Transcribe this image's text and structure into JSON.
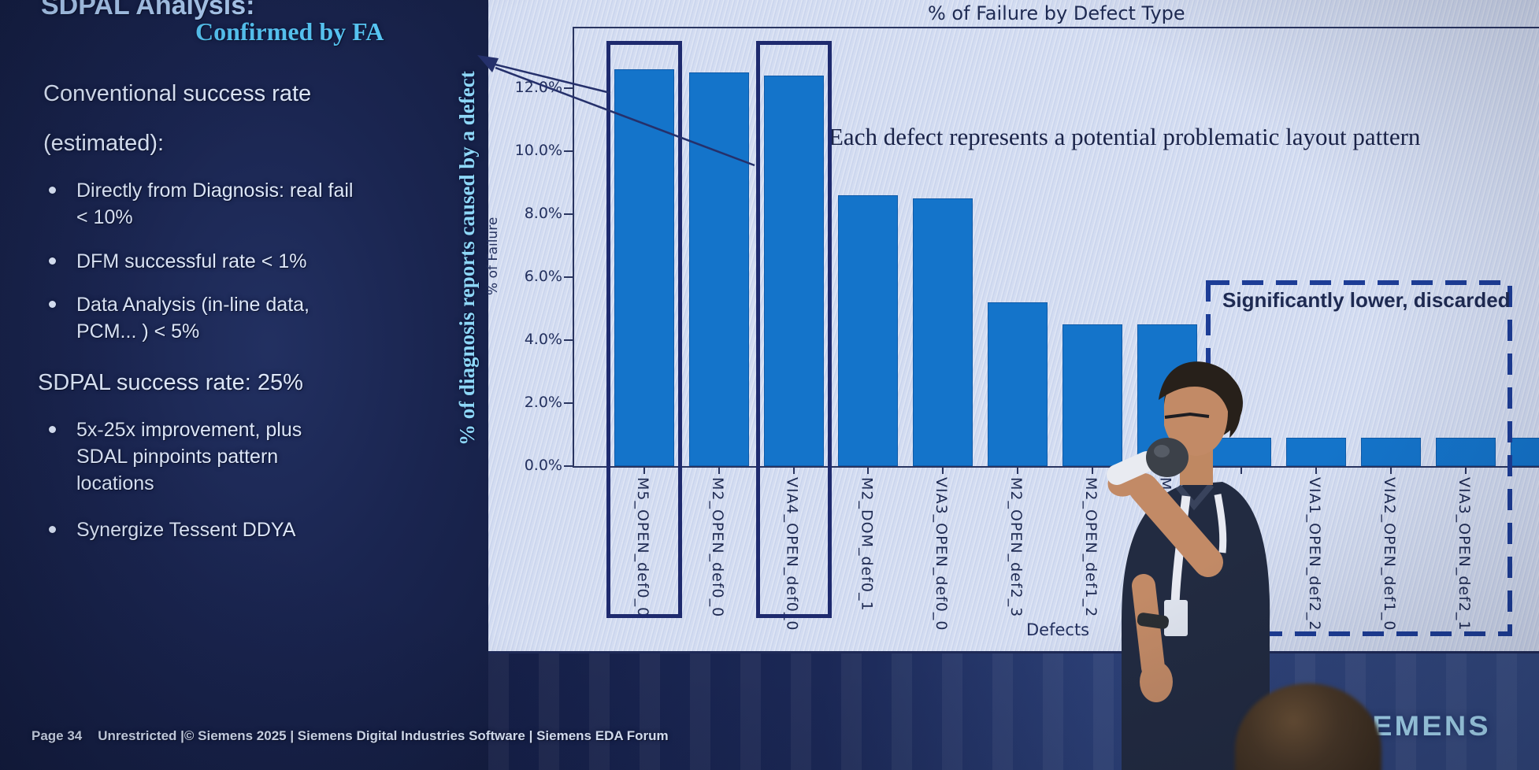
{
  "slide": {
    "title": "SDPAL Analysis:",
    "fa_label": "Confirmed by FA",
    "heading": "Conventional success rate",
    "heading2": "(estimated):",
    "bullets": [
      "Directly from Diagnosis: real fail < 10%",
      "DFM successful rate < 1%",
      "Data Analysis (in-line data, PCM... ) < 5%"
    ],
    "success_line": "SDPAL success rate: 25%",
    "bullets2": [
      "5x-25x improvement, plus SDAL pinpoints pattern locations",
      "Synergize Tessent DDYA"
    ]
  },
  "footer": {
    "page": "Page 34",
    "line": "Unrestricted |© Siemens 2025 | Siemens Digital Industries Software | Siemens EDA Forum"
  },
  "brand": {
    "logo": "SIEMENS",
    "logo_color": "#a9dcf4"
  },
  "chart_data": {
    "type": "bar",
    "title": "% of Failure by Defect Type",
    "xlabel": "Defects",
    "ylabel": "% of Failure",
    "outer_ylabel": "% of diagnosis reports caused by a defect",
    "categories": [
      "M5_OPEN_def0_0",
      "M2_OPEN_def0_0",
      "VIA4_OPEN_def0_0",
      "M2_DOM_def0_1",
      "VIA3_OPEN_def0_0",
      "M2_OPEN_def2_3",
      "M2_OPEN_def1_2",
      "M5_O",
      "",
      "VIA1_OPEN_def2_2",
      "VIA2_OPEN_def1_0",
      "VIA3_OPEN_def2_1",
      ""
    ],
    "values": [
      12.6,
      12.5,
      12.4,
      8.6,
      8.5,
      5.2,
      4.5,
      4.5,
      0.9,
      0.9,
      0.9,
      0.9,
      0.9
    ],
    "ylim": [
      0,
      13.5
    ],
    "ytick_labels": [
      "0.0%",
      "2.0%",
      "4.0%",
      "6.0%",
      "8.0%",
      "10.0%",
      "12.0%"
    ],
    "grid": false,
    "legend": null,
    "bar_color": "#1474ca",
    "highlighted_indices": [
      0,
      2
    ],
    "highlight_note": "Confirmed by FA",
    "discarded": {
      "label": "Significantly lower, discarded",
      "indices": [
        8,
        9,
        10,
        11,
        12
      ]
    },
    "annotation": "Each defect represents a potential problematic layout pattern"
  }
}
